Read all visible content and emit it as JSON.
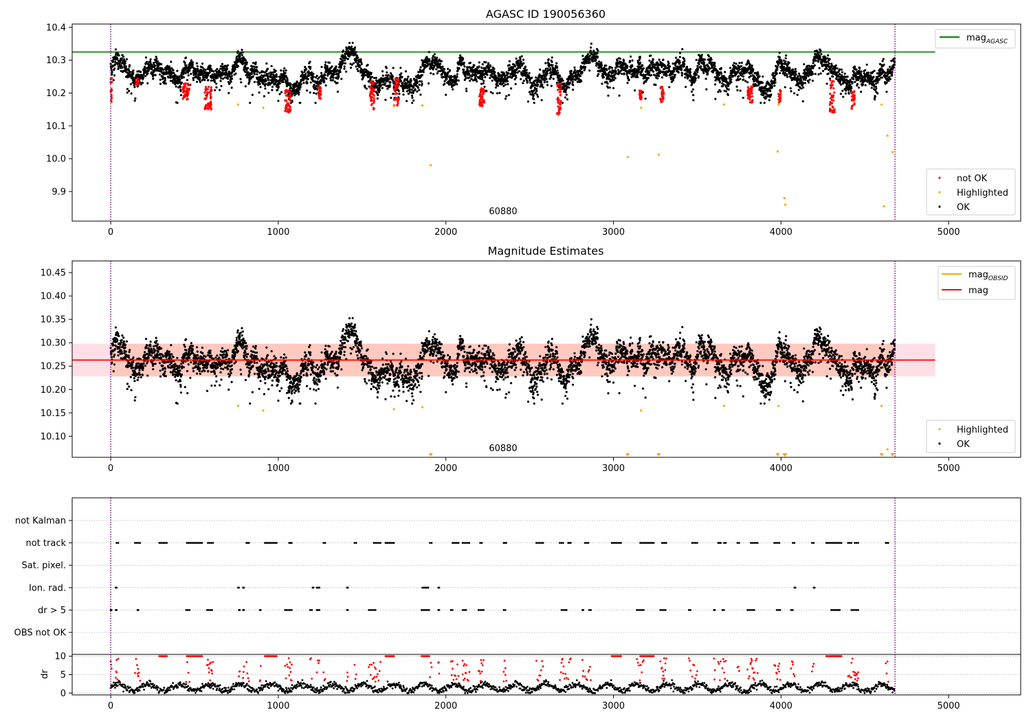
{
  "figure": {
    "background": "#ffffff",
    "colors": {
      "ok": "#000000",
      "not_ok": "#ff0000",
      "highlighted": "#ffa500",
      "mag_agasc": "#008000",
      "mag_obsid": "#ffa500",
      "mag": "#ff0000",
      "band_outer": "#ffc0cb",
      "band_inner": "#ffa07a",
      "obs_marker": "#800080"
    }
  },
  "chart_data": [
    {
      "type": "scatter",
      "title": "AGASC ID 190056360",
      "xlim": [
        -230,
        5430
      ],
      "ylim": [
        9.81,
        10.41
      ],
      "x_ticks": [
        0,
        1000,
        2000,
        3000,
        4000,
        5000
      ],
      "y_ticks": [
        9.9,
        10.0,
        10.1,
        10.2,
        10.3,
        10.4
      ],
      "y_tick_labels": [
        "9.9",
        "10.0",
        "10.1",
        "10.2",
        "10.3",
        "10.4"
      ],
      "obsid_boundaries": [
        0,
        4680
      ],
      "obsid_label": "60880",
      "obsid_label_x": 2340,
      "grid": false,
      "lines": [
        {
          "name": "mag",
          "sub": "AGASC",
          "y": 10.325,
          "x_range": [
            -230,
            4920
          ]
        }
      ],
      "legend_upper": {
        "location": "upper right",
        "entries": [
          {
            "label": "mag",
            "sub": "AGASC",
            "color_key": "mag_agasc"
          }
        ]
      },
      "legend_lower": {
        "location": "lower right",
        "entries": [
          {
            "label": "not OK",
            "color_key": "not_ok"
          },
          {
            "label": "Highlighted",
            "color_key": "highlighted"
          },
          {
            "label": "OK",
            "color_key": "ok"
          }
        ]
      },
      "ok_series": {
        "name": "OK",
        "n_points": 4680,
        "x_range": [
          0,
          4680
        ],
        "mean": 10.264,
        "scatter": 0.03,
        "min": 10.17,
        "max": 10.36
      },
      "not_ok_segments": [
        {
          "x": [
            0,
            10
          ],
          "y": [
            10.17,
            10.245
          ]
        },
        {
          "x": [
            150,
            165
          ],
          "y": [
            10.225,
            10.245
          ]
        },
        {
          "x": [
            430,
            470
          ],
          "y": [
            10.18,
            10.23
          ]
        },
        {
          "x": [
            560,
            600
          ],
          "y": [
            10.15,
            10.22
          ]
        },
        {
          "x": [
            1040,
            1075
          ],
          "y": [
            10.14,
            10.21
          ]
        },
        {
          "x": [
            1240,
            1255
          ],
          "y": [
            10.18,
            10.22
          ]
        },
        {
          "x": [
            1545,
            1575
          ],
          "y": [
            10.15,
            10.235
          ]
        },
        {
          "x": [
            1690,
            1720
          ],
          "y": [
            10.16,
            10.245
          ]
        },
        {
          "x": [
            2200,
            2230
          ],
          "y": [
            10.16,
            10.215
          ]
        },
        {
          "x": [
            2660,
            2690
          ],
          "y": [
            10.13,
            10.23
          ]
        },
        {
          "x": [
            3155,
            3170
          ],
          "y": [
            10.18,
            10.21
          ]
        },
        {
          "x": [
            3280,
            3300
          ],
          "y": [
            10.17,
            10.22
          ]
        },
        {
          "x": [
            3800,
            3830
          ],
          "y": [
            10.17,
            10.22
          ]
        },
        {
          "x": [
            3985,
            4000
          ],
          "y": [
            10.17,
            10.21
          ]
        },
        {
          "x": [
            4290,
            4320
          ],
          "y": [
            10.14,
            10.24
          ]
        },
        {
          "x": [
            4420,
            4440
          ],
          "y": [
            10.15,
            10.21
          ]
        }
      ],
      "highlighted": [
        {
          "x": 760,
          "y": 10.165
        },
        {
          "x": 910,
          "y": 10.155
        },
        {
          "x": 1690,
          "y": 10.16
        },
        {
          "x": 1860,
          "y": 10.162
        },
        {
          "x": 1910,
          "y": 9.98
        },
        {
          "x": 3085,
          "y": 10.005
        },
        {
          "x": 3165,
          "y": 10.155
        },
        {
          "x": 3270,
          "y": 10.012
        },
        {
          "x": 3660,
          "y": 10.165
        },
        {
          "x": 3980,
          "y": 10.022
        },
        {
          "x": 3985,
          "y": 10.165
        },
        {
          "x": 4020,
          "y": 9.88
        },
        {
          "x": 4025,
          "y": 9.86
        },
        {
          "x": 4600,
          "y": 10.165
        },
        {
          "x": 4615,
          "y": 9.855
        },
        {
          "x": 4635,
          "y": 10.07
        },
        {
          "x": 4665,
          "y": 10.02
        }
      ]
    },
    {
      "type": "scatter",
      "title": "Magnitude Estimates",
      "xlim": [
        -230,
        5430
      ],
      "ylim": [
        10.055,
        10.475
      ],
      "x_ticks": [
        0,
        1000,
        2000,
        3000,
        4000,
        5000
      ],
      "y_ticks": [
        10.1,
        10.15,
        10.2,
        10.25,
        10.3,
        10.35,
        10.4,
        10.45
      ],
      "y_tick_labels": [
        "10.10",
        "10.15",
        "10.20",
        "10.25",
        "10.30",
        "10.35",
        "10.40",
        "10.45"
      ],
      "obsid_boundaries": [
        0,
        4680
      ],
      "obsid_label": "60880",
      "obsid_label_x": 2340,
      "grid": false,
      "band_outer": {
        "y": [
          10.228,
          10.298
        ],
        "x_range": [
          -230,
          4920
        ]
      },
      "band_inner": {
        "y": [
          10.228,
          10.298
        ],
        "x_range": [
          0,
          4680
        ]
      },
      "lines": [
        {
          "name": "mag",
          "sub": "OBSID",
          "y": 10.263,
          "x_range": [
            0,
            4680
          ],
          "color_key": "mag_obsid"
        },
        {
          "name": "mag",
          "y": 10.263,
          "x_range": [
            -230,
            4920
          ],
          "color_key": "mag"
        }
      ],
      "legend_upper": {
        "location": "upper right",
        "entries": [
          {
            "label": "mag",
            "sub": "OBSID",
            "color_key": "mag_obsid"
          },
          {
            "label": "mag",
            "color_key": "mag"
          }
        ]
      },
      "legend_lower": {
        "location": "lower right",
        "entries": [
          {
            "label": "Highlighted",
            "color_key": "highlighted"
          },
          {
            "label": "OK",
            "color_key": "ok"
          }
        ]
      },
      "highlighted": [
        {
          "x": 760,
          "y": 10.165
        },
        {
          "x": 910,
          "y": 10.155
        },
        {
          "x": 1690,
          "y": 10.158
        },
        {
          "x": 1860,
          "y": 10.162
        },
        {
          "x": 3165,
          "y": 10.155
        },
        {
          "x": 3660,
          "y": 10.165
        },
        {
          "x": 3985,
          "y": 10.165
        },
        {
          "x": 4600,
          "y": 10.165
        },
        {
          "x": 4635,
          "y": 10.072
        }
      ],
      "below_axis_markers": [
        1910,
        3085,
        3270,
        3980,
        4020,
        4025,
        4600,
        4665
      ]
    },
    {
      "type": "scatter",
      "xlim": [
        -230,
        5430
      ],
      "x_ticks": [
        0,
        1000,
        2000,
        3000,
        4000,
        5000
      ],
      "obsid_boundaries": [
        0,
        4680
      ],
      "flag_rows": [
        "not Kalman",
        "not track",
        "Sat. pixel.",
        "Ion. rad.",
        "dr > 5",
        "OBS not OK"
      ],
      "grid": true,
      "flags": {
        "not Kalman": [],
        "not track": [
          [
            35,
            45
          ],
          [
            145,
            175
          ],
          [
            290,
            335
          ],
          [
            455,
            545
          ],
          [
            580,
            610
          ],
          [
            810,
            825
          ],
          [
            920,
            990
          ],
          [
            1065,
            1080
          ],
          [
            1270,
            1280
          ],
          [
            1455,
            1465
          ],
          [
            1570,
            1610
          ],
          [
            1640,
            1690
          ],
          [
            1905,
            1915
          ],
          [
            2040,
            2075
          ],
          [
            2100,
            2140
          ],
          [
            2205,
            2215
          ],
          [
            2345,
            2360
          ],
          [
            2540,
            2580
          ],
          [
            2680,
            2700
          ],
          [
            2730,
            2745
          ],
          [
            2830,
            2850
          ],
          [
            2990,
            3045
          ],
          [
            3160,
            3240
          ],
          [
            3290,
            3315
          ],
          [
            3470,
            3500
          ],
          [
            3625,
            3640
          ],
          [
            3660,
            3670
          ],
          [
            3740,
            3750
          ],
          [
            3820,
            3860
          ],
          [
            3960,
            3990
          ],
          [
            4070,
            4080
          ],
          [
            4185,
            4195
          ],
          [
            4270,
            4360
          ],
          [
            4400,
            4420
          ],
          [
            4440,
            4460
          ],
          [
            4625,
            4640
          ]
        ],
        "Sat. pixel.": [],
        "Ion. rad.": [
          [
            30,
            35
          ],
          [
            760,
            765
          ],
          [
            790,
            795
          ],
          [
            1205,
            1210
          ],
          [
            1230,
            1245
          ],
          [
            1410,
            1415
          ],
          [
            1860,
            1895
          ],
          [
            1955,
            1960
          ],
          [
            4080,
            4085
          ],
          [
            4195,
            4200
          ]
        ],
        "dr > 5": [
          [
            0,
            5
          ],
          [
            30,
            35
          ],
          [
            160,
            165
          ],
          [
            450,
            470
          ],
          [
            575,
            605
          ],
          [
            765,
            770
          ],
          [
            790,
            795
          ],
          [
            890,
            895
          ],
          [
            1040,
            1080
          ],
          [
            1190,
            1200
          ],
          [
            1230,
            1245
          ],
          [
            1410,
            1415
          ],
          [
            1540,
            1580
          ],
          [
            1855,
            1900
          ],
          [
            1955,
            1960
          ],
          [
            2030,
            2040
          ],
          [
            2100,
            2120
          ],
          [
            2195,
            2225
          ],
          [
            2345,
            2355
          ],
          [
            2690,
            2720
          ],
          [
            2815,
            2820
          ],
          [
            2855,
            2865
          ],
          [
            3140,
            3180
          ],
          [
            3280,
            3310
          ],
          [
            3450,
            3460
          ],
          [
            3600,
            3605
          ],
          [
            3650,
            3660
          ],
          [
            3800,
            3840
          ],
          [
            3975,
            3995
          ],
          [
            4060,
            4070
          ],
          [
            4300,
            4350
          ],
          [
            4420,
            4460
          ]
        ],
        "OBS not OK": []
      }
    },
    {
      "type": "scatter",
      "ylabel": "dr",
      "xlim": [
        -230,
        5430
      ],
      "ylim": [
        -0.5,
        10.5
      ],
      "x_ticks": [
        0,
        1000,
        2000,
        3000,
        4000,
        5000
      ],
      "y_ticks": [
        0,
        5,
        10
      ],
      "obsid_boundaries": [
        0,
        4680
      ],
      "grid": true,
      "ok_dr": {
        "range": [
          0,
          3.5
        ],
        "typical": 1.5
      },
      "not_ok_dr": {
        "range": [
          2.5,
          10
        ],
        "clip": 10
      }
    }
  ]
}
